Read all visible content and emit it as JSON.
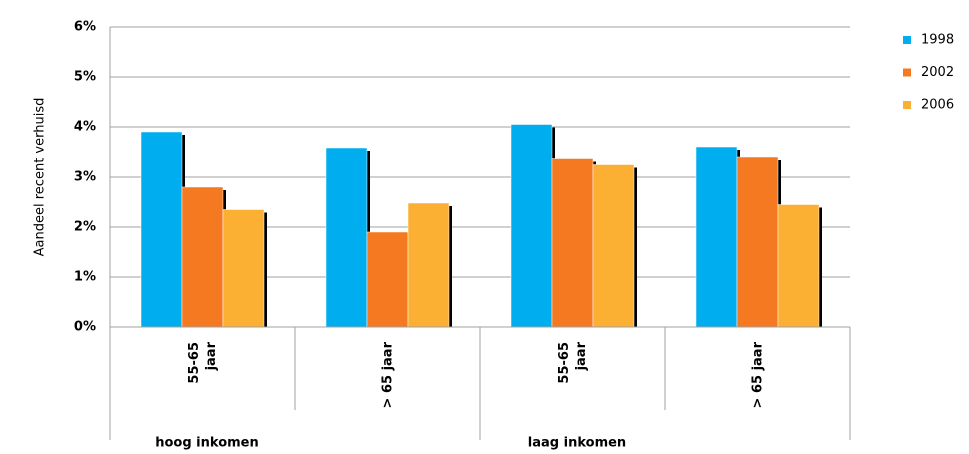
{
  "chart_data": {
    "type": "bar",
    "y_label": "Aandeel recent verhuisd",
    "groups": [
      "hoog inkomen",
      "laag inkomen"
    ],
    "categories": [
      "55-65\njaar",
      "> 65 jaar",
      "55-65\njaar",
      "> 65 jaar"
    ],
    "series": [
      {
        "name": "1998",
        "color": "#00aeef",
        "values": [
          3.9,
          3.58,
          4.05,
          3.6
        ]
      },
      {
        "name": "2002",
        "color": "#f47920",
        "values": [
          2.8,
          1.9,
          3.37,
          3.4
        ]
      },
      {
        "name": "2006",
        "color": "#fbb034",
        "values": [
          2.35,
          2.48,
          3.25,
          2.45
        ]
      }
    ],
    "ylim": [
      0,
      6
    ],
    "yticks": [
      {
        "value": 0,
        "label": "0%"
      },
      {
        "value": 1,
        "label": "1%"
      },
      {
        "value": 2,
        "label": "2%"
      },
      {
        "value": 3,
        "label": "3%"
      },
      {
        "value": 4,
        "label": "4%"
      },
      {
        "value": 5,
        "label": "5%"
      },
      {
        "value": 6,
        "label": "6%"
      }
    ],
    "grid": true,
    "legend": "right"
  }
}
